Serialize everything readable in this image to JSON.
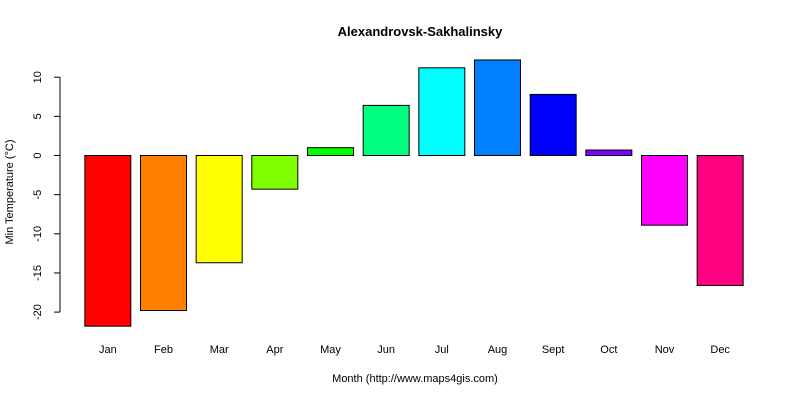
{
  "chart_data": {
    "type": "bar",
    "title": "Alexandrovsk-Sakhalinsky",
    "xlabel": "Month (http://www.maps4gis.com)",
    "ylabel": "Min Temperature (°C)",
    "categories": [
      "Jan",
      "Feb",
      "Mar",
      "Apr",
      "May",
      "Jun",
      "Jul",
      "Aug",
      "Sept",
      "Oct",
      "Nov",
      "Dec"
    ],
    "values": [
      -21.8,
      -19.8,
      -13.7,
      -4.3,
      1.0,
      6.4,
      11.2,
      12.2,
      7.8,
      0.7,
      -8.9,
      -16.6
    ],
    "colors": [
      "#ff0000",
      "#ff8000",
      "#ffff00",
      "#80ff00",
      "#00ff00",
      "#00ff80",
      "#00ffff",
      "#0080ff",
      "#0000ff",
      "#8000ff",
      "#ff00ff",
      "#ff0080"
    ],
    "ylim": [
      -20,
      10
    ],
    "yticks": [
      10,
      5,
      0,
      -5,
      -10,
      -15,
      -20
    ],
    "grid": false,
    "legend": "none"
  }
}
